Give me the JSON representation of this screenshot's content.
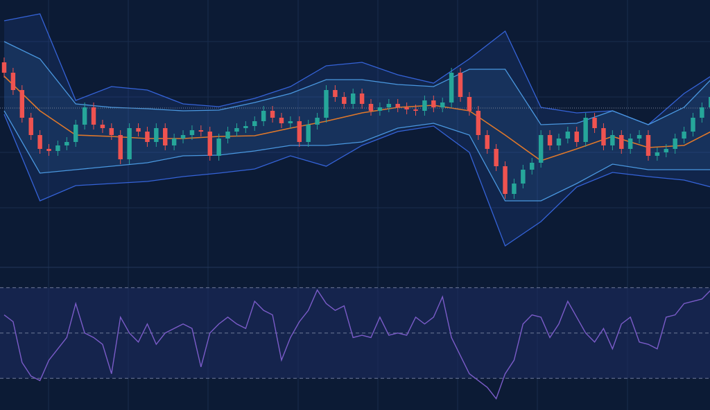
{
  "chart_data": [
    {
      "type": "candlestick",
      "xlim": [
        -0.465,
        78.9
      ],
      "ylim": [
        0,
        380
      ],
      "up_color": "#26a69a",
      "down_color": "#ef5350",
      "price_line": 224,
      "price_line_color": "#7d8699",
      "open": [
        290,
        275,
        250,
        210,
        185,
        165,
        162,
        170,
        175,
        200,
        225,
        200,
        195,
        185,
        150,
        195,
        190,
        175,
        195,
        170,
        180,
        185,
        192,
        190,
        155,
        180,
        190,
        195,
        198,
        205,
        220,
        210,
        202,
        205,
        175,
        200,
        210,
        250,
        240,
        230,
        245,
        230,
        220,
        225,
        230,
        225,
        222,
        220,
        235,
        225,
        232,
        275,
        240,
        220,
        185,
        165,
        140,
        100,
        115,
        135,
        145,
        185,
        170,
        180,
        190,
        175,
        210,
        195,
        170,
        185,
        165,
        180,
        185,
        155,
        160,
        165,
        180,
        190,
        210,
        225
      ],
      "high": [
        297,
        282,
        257,
        217,
        192,
        172,
        177,
        182,
        207,
        232,
        232,
        207,
        202,
        192,
        202,
        202,
        197,
        202,
        202,
        187,
        192,
        199,
        199,
        197,
        187,
        197,
        202,
        205,
        212,
        227,
        227,
        217,
        212,
        212,
        207,
        217,
        257,
        257,
        247,
        252,
        252,
        237,
        232,
        237,
        237,
        232,
        229,
        242,
        242,
        239,
        282,
        282,
        247,
        227,
        192,
        172,
        147,
        122,
        142,
        152,
        192,
        192,
        187,
        197,
        197,
        217,
        217,
        202,
        192,
        192,
        187,
        192,
        192,
        167,
        172,
        187,
        197,
        217,
        232,
        247
      ],
      "low": [
        268,
        243,
        203,
        178,
        158,
        155,
        155,
        163,
        168,
        193,
        193,
        188,
        178,
        143,
        143,
        183,
        168,
        168,
        163,
        163,
        173,
        178,
        183,
        148,
        148,
        173,
        183,
        188,
        191,
        198,
        203,
        195,
        195,
        168,
        168,
        193,
        203,
        233,
        223,
        223,
        223,
        213,
        213,
        218,
        218,
        215,
        213,
        213,
        218,
        218,
        225,
        233,
        213,
        178,
        158,
        133,
        93,
        93,
        108,
        128,
        138,
        163,
        163,
        173,
        168,
        168,
        188,
        163,
        163,
        158,
        158,
        173,
        148,
        148,
        153,
        158,
        173,
        183,
        203,
        218
      ],
      "close": [
        275,
        250,
        210,
        185,
        165,
        162,
        170,
        175,
        200,
        225,
        200,
        195,
        185,
        150,
        195,
        190,
        175,
        195,
        170,
        180,
        185,
        192,
        190,
        155,
        180,
        190,
        195,
        198,
        205,
        220,
        210,
        202,
        205,
        175,
        200,
        210,
        250,
        240,
        230,
        245,
        230,
        220,
        225,
        230,
        225,
        222,
        220,
        235,
        225,
        232,
        275,
        240,
        220,
        185,
        165,
        140,
        100,
        115,
        135,
        145,
        185,
        170,
        180,
        190,
        175,
        210,
        195,
        170,
        185,
        165,
        180,
        185,
        155,
        160,
        165,
        180,
        190,
        210,
        225,
        240
      ],
      "bands": [
        {
          "color": "#3563d8",
          "x": [
            0,
            4,
            8,
            12,
            16,
            20,
            24,
            28,
            32,
            36,
            40,
            44,
            48,
            52,
            56,
            60,
            64,
            68,
            72,
            76,
            79
          ],
          "values": [
            350,
            360,
            235,
            255,
            250,
            230,
            226,
            238,
            255,
            285,
            290,
            272,
            260,
            295,
            335,
            225,
            217,
            220,
            200,
            245,
            270
          ]
        },
        {
          "color": "#4a98e0",
          "x": [
            0,
            4,
            8,
            12,
            16,
            20,
            24,
            28,
            32,
            36,
            40,
            44,
            48,
            52,
            56,
            60,
            64,
            68,
            72,
            76,
            79
          ],
          "values": [
            320,
            295,
            230,
            225,
            223,
            220,
            221,
            232,
            245,
            265,
            265,
            258,
            255,
            280,
            280,
            200,
            202,
            220,
            200,
            225,
            265
          ]
        },
        {
          "color": "#e0782a",
          "x": [
            0,
            4,
            8,
            12,
            16,
            20,
            24,
            28,
            32,
            36,
            40,
            44,
            48,
            52,
            56,
            60,
            64,
            68,
            72,
            76,
            79
          ],
          "values": [
            270,
            220,
            185,
            183,
            180,
            180,
            183,
            184,
            195,
            205,
            217,
            225,
            228,
            220,
            185,
            148,
            165,
            183,
            167,
            170,
            190
          ]
        },
        {
          "color": "#4a98e0",
          "x": [
            0,
            4,
            8,
            12,
            16,
            20,
            24,
            28,
            32,
            36,
            40,
            44,
            48,
            52,
            56,
            60,
            64,
            68,
            72,
            76,
            79
          ],
          "values": [
            220,
            130,
            135,
            140,
            145,
            155,
            156,
            162,
            170,
            170,
            175,
            195,
            202,
            185,
            90,
            90,
            115,
            143,
            135,
            135,
            135
          ]
        },
        {
          "color": "#3563d8",
          "x": [
            0,
            4,
            8,
            12,
            16,
            20,
            24,
            28,
            32,
            36,
            40,
            44,
            48,
            52,
            56,
            60,
            64,
            68,
            72,
            76,
            79
          ],
          "values": [
            215,
            90,
            112,
            115,
            118,
            125,
            130,
            136,
            155,
            140,
            170,
            190,
            198,
            160,
            25,
            60,
            110,
            131,
            125,
            120,
            110
          ]
        }
      ]
    },
    {
      "type": "line",
      "xlim": [
        -0.465,
        78.9
      ],
      "ylim": [
        16,
        79
      ],
      "yticks": [
        30,
        50,
        70
      ],
      "color": "#7b5cc9",
      "values": [
        58,
        55,
        37,
        31,
        29,
        38,
        43,
        48,
        63,
        50,
        48,
        45,
        32,
        57,
        50,
        46,
        54,
        45,
        50,
        52,
        54,
        52,
        35,
        50,
        54,
        57,
        54,
        52,
        64,
        60,
        58,
        38,
        48,
        55,
        60,
        69,
        63,
        60,
        62,
        48,
        49,
        48,
        57,
        49,
        50,
        49,
        57,
        54,
        57,
        66,
        48,
        40,
        32,
        29,
        26,
        21,
        32,
        38,
        54,
        58,
        57,
        48,
        54,
        64,
        57,
        50,
        46,
        52,
        43,
        54,
        57,
        46,
        45,
        43,
        57,
        58,
        63,
        64,
        65,
        69
      ]
    }
  ]
}
